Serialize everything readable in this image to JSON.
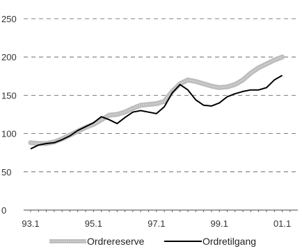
{
  "chart_data": {
    "type": "line",
    "title": "",
    "xlabel": "",
    "ylabel": "",
    "ylim": [
      0,
      250
    ],
    "yticks": [
      0,
      50,
      100,
      150,
      200,
      250
    ],
    "xticks": [
      "93.1",
      "95.1",
      "97.1",
      "99.1",
      "01.1"
    ],
    "grid": "horizontal dashed",
    "legend_position": "bottom",
    "x": [
      "93.1",
      "93.2",
      "93.3",
      "93.4",
      "94.1",
      "94.2",
      "94.3",
      "94.4",
      "95.1",
      "95.2",
      "95.3",
      "95.4",
      "96.1",
      "96.2",
      "96.3",
      "96.4",
      "97.1",
      "97.2",
      "97.3",
      "97.4",
      "98.1",
      "98.2",
      "98.3",
      "98.4",
      "99.1",
      "99.2",
      "99.3",
      "99.4",
      "00.1",
      "00.2",
      "00.3",
      "00.4",
      "01.1",
      "01.2"
    ],
    "series": [
      {
        "name": "Ordrereserve",
        "color": "#bdbdbd",
        "style": "thick-light",
        "values": [
          88,
          87,
          87,
          89,
          93,
          98,
          103,
          108,
          112,
          118,
          124,
          125,
          128,
          133,
          137,
          138,
          139,
          142,
          155,
          165,
          170,
          168,
          165,
          162,
          160,
          161,
          164,
          170,
          179,
          186,
          191,
          196,
          200,
          null
        ]
      },
      {
        "name": "Ordretilgang",
        "color": "#000000",
        "style": "thin-dark",
        "values": [
          80,
          85,
          87,
          88,
          92,
          97,
          104,
          109,
          114,
          122,
          118,
          113,
          121,
          128,
          130,
          128,
          126,
          135,
          153,
          164,
          157,
          144,
          137,
          136,
          140,
          148,
          152,
          155,
          157,
          157,
          160,
          170,
          176,
          null
        ]
      }
    ]
  }
}
